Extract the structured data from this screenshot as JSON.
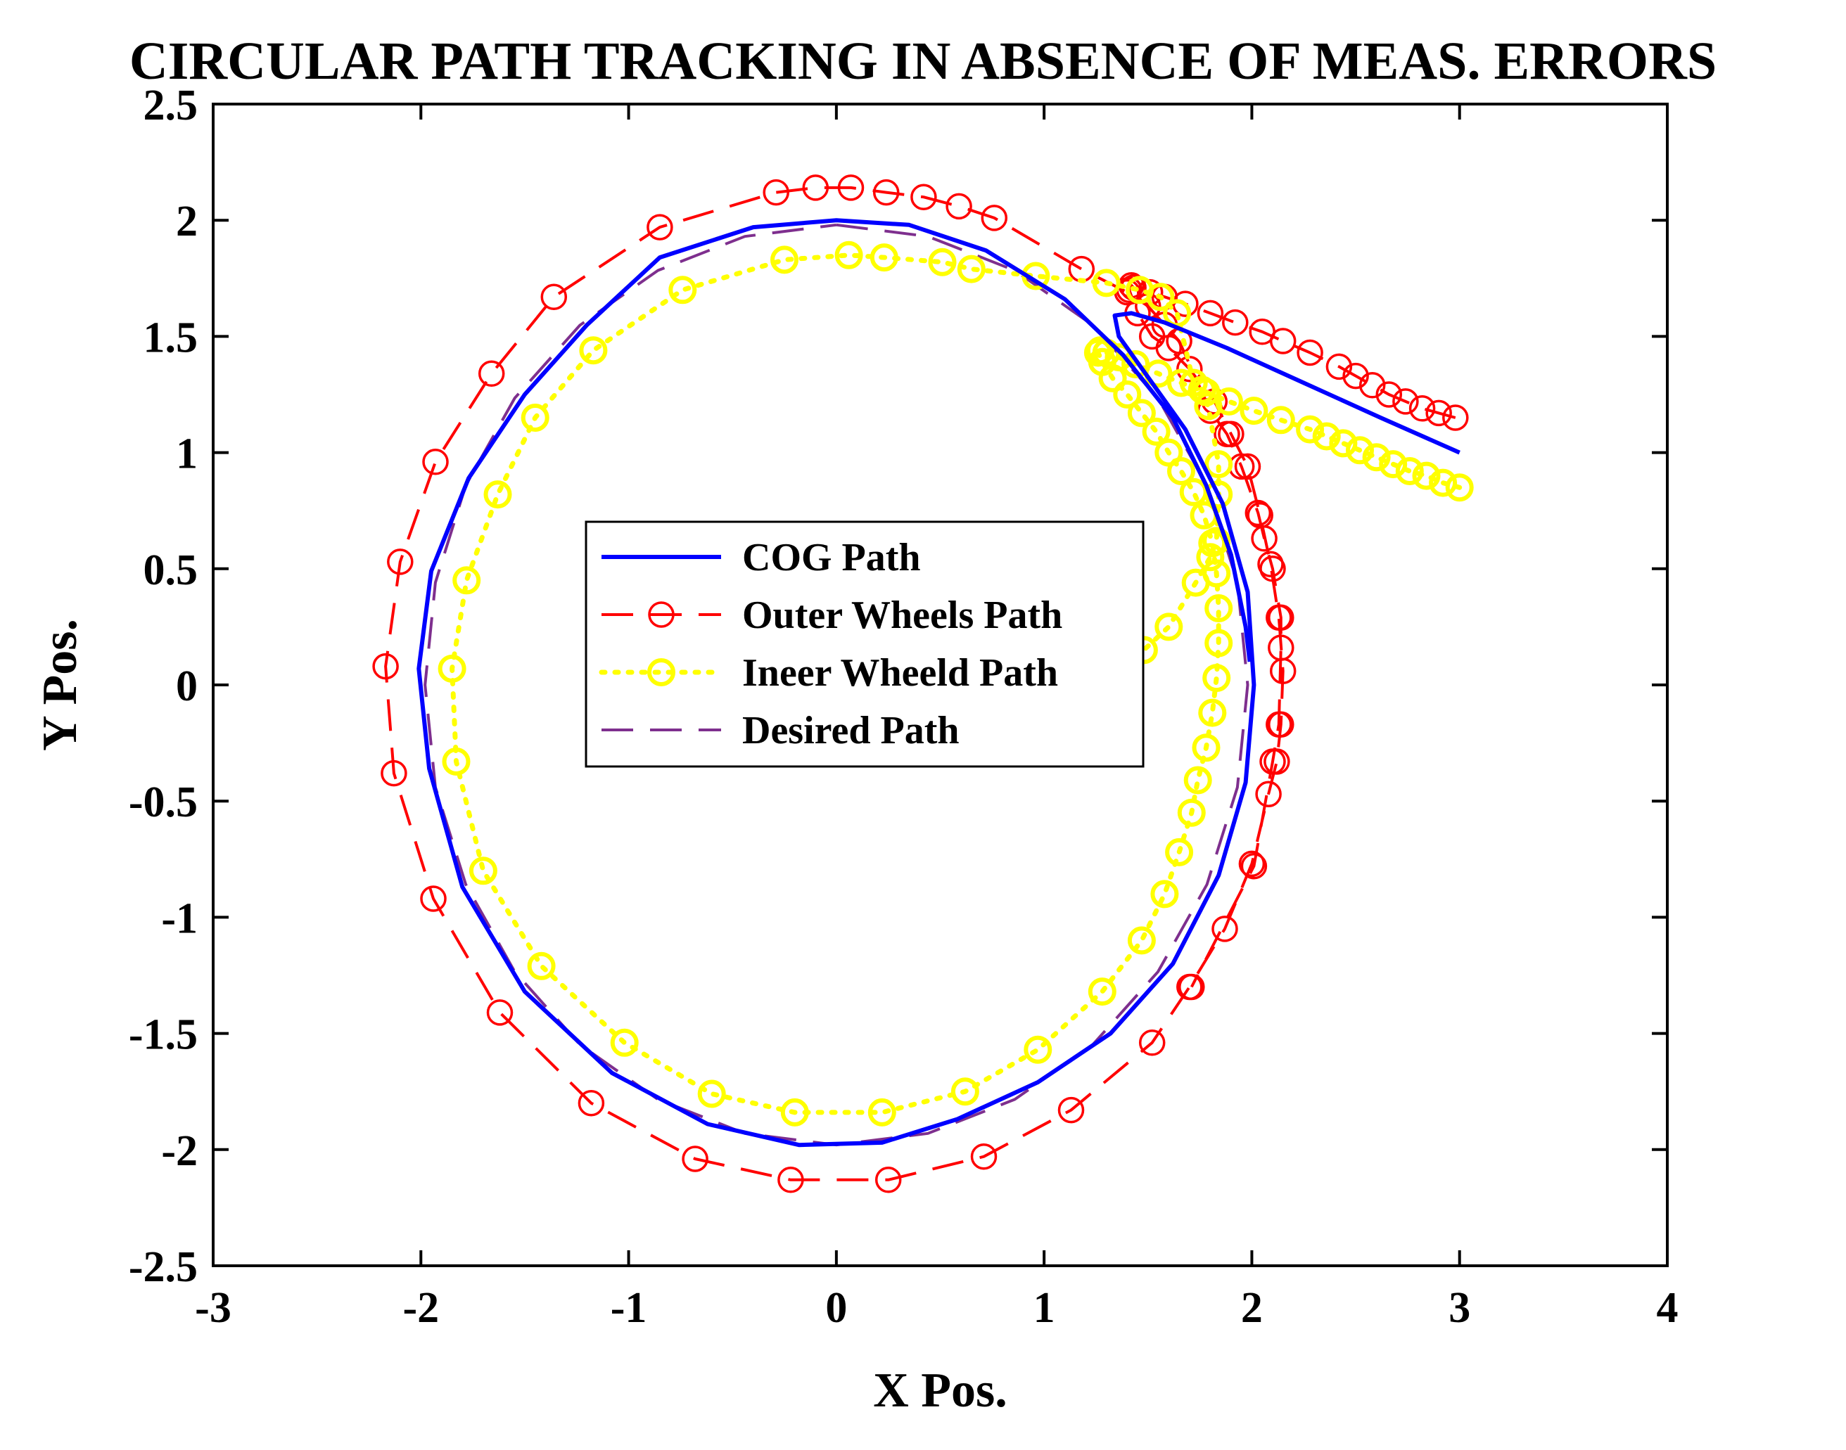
{
  "chart_data": {
    "type": "line",
    "title": "CIRCULAR PATH TRACKING IN ABSENCE OF MEAS. ERRORS",
    "xlabel": "X Pos.",
    "ylabel": "Y Pos.",
    "xlim": [
      -3,
      4
    ],
    "ylim": [
      -2.5,
      2.5
    ],
    "xticks": [
      -3,
      -2,
      -1,
      0,
      1,
      2,
      3,
      4
    ],
    "xtick_labels": [
      "-3",
      "-2",
      "-1",
      "0",
      "1",
      "2",
      "3",
      "4"
    ],
    "yticks": [
      -2.5,
      -2,
      -1.5,
      -1,
      -0.5,
      0,
      0.5,
      1,
      1.5,
      2,
      2.5
    ],
    "ytick_labels": [
      "-2.5",
      "-2",
      "-1.5",
      "-1",
      "-0.5",
      "0",
      "0.5",
      "1",
      "1.5",
      "2",
      "2.5"
    ],
    "grid": false,
    "legend_position": "center",
    "series": [
      {
        "name": "COG Path",
        "color": "#0000ff",
        "line_style": "solid",
        "marker": "none",
        "x": [
          3.0,
          2.62,
          2.25,
          1.88,
          1.58,
          1.42,
          1.34,
          1.36,
          1.48,
          1.68,
          1.86,
          1.98,
          2.01,
          1.97,
          1.84,
          1.62,
          1.32,
          0.97,
          0.58,
          0.22,
          -0.18,
          -0.62,
          -1.08,
          -1.5,
          -1.8,
          -1.96,
          -2.01,
          -1.95,
          -1.77,
          -1.5,
          -1.2,
          -0.85,
          -0.4,
          0.0,
          0.35,
          0.72,
          1.1,
          1.38,
          1.62,
          1.78,
          1.9,
          1.97,
          1.99
        ],
        "y": [
          1.0,
          1.15,
          1.3,
          1.45,
          1.56,
          1.6,
          1.59,
          1.5,
          1.35,
          1.1,
          0.78,
          0.4,
          0.0,
          -0.42,
          -0.82,
          -1.2,
          -1.5,
          -1.71,
          -1.87,
          -1.97,
          -1.98,
          -1.89,
          -1.67,
          -1.32,
          -0.87,
          -0.36,
          0.07,
          0.49,
          0.89,
          1.25,
          1.55,
          1.84,
          1.97,
          2.0,
          1.98,
          1.87,
          1.66,
          1.42,
          1.15,
          0.86,
          0.56,
          0.25,
          0.1
        ]
      },
      {
        "name": "Outer Wheels Path",
        "color": "#ff0000",
        "line_style": "dashed",
        "marker": "circle",
        "x": [
          2.98,
          2.9,
          2.82,
          2.74,
          2.66,
          2.58,
          2.5,
          2.42,
          2.28,
          2.15,
          2.05,
          1.92,
          1.8,
          1.68,
          1.58,
          1.51,
          1.46,
          1.43,
          1.42,
          1.41,
          1.45,
          1.52,
          1.6,
          1.7,
          1.82,
          1.9,
          1.98,
          2.04,
          2.09,
          2.13,
          2.15,
          2.14,
          2.12,
          2.08,
          2.0,
          1.87,
          1.7,
          1.52,
          1.13,
          0.71,
          0.25,
          -0.22,
          -0.68,
          -1.18,
          -1.62,
          -1.94,
          -2.13,
          -2.17,
          -2.1,
          -1.93,
          -1.66,
          -1.36,
          -0.85,
          -0.29,
          -0.1,
          0.07,
          0.24,
          0.42,
          0.59,
          0.76,
          1.18,
          1.4,
          1.5,
          1.58,
          1.65,
          1.8,
          1.88,
          1.95,
          2.03,
          2.06,
          2.1,
          2.14,
          2.14,
          2.13,
          2.1,
          2.01,
          1.71
        ],
        "y": [
          1.15,
          1.17,
          1.19,
          1.22,
          1.25,
          1.29,
          1.33,
          1.37,
          1.43,
          1.48,
          1.52,
          1.56,
          1.6,
          1.64,
          1.67,
          1.69,
          1.7,
          1.71,
          1.72,
          1.7,
          1.6,
          1.5,
          1.45,
          1.36,
          1.22,
          1.08,
          0.94,
          0.73,
          0.52,
          0.29,
          0.06,
          -0.17,
          -0.33,
          -0.47,
          -0.77,
          -1.05,
          -1.3,
          -1.54,
          -1.83,
          -2.03,
          -2.13,
          -2.13,
          -2.04,
          -1.8,
          -1.41,
          -0.92,
          -0.38,
          0.08,
          0.53,
          0.96,
          1.34,
          1.67,
          1.97,
          2.12,
          2.14,
          2.14,
          2.12,
          2.1,
          2.06,
          2.01,
          1.79,
          1.69,
          1.63,
          1.55,
          1.48,
          1.18,
          1.08,
          0.94,
          0.74,
          0.63,
          0.5,
          0.29,
          0.16,
          -0.17,
          -0.33,
          -0.78,
          -1.3
        ]
      },
      {
        "name": "Ineer Wheeld Path",
        "color": "#ffff00",
        "line_style": "dotted",
        "marker": "circle",
        "x": [
          3.0,
          2.92,
          2.84,
          2.76,
          2.68,
          2.6,
          2.52,
          2.44,
          2.36,
          2.28,
          2.14,
          2.01,
          1.89,
          1.78,
          1.66,
          1.55,
          1.44,
          1.36,
          1.3,
          1.27,
          1.26,
          1.28,
          1.33,
          1.4,
          1.47,
          1.54,
          1.6,
          1.66,
          1.72,
          1.77,
          1.81,
          1.83,
          1.84,
          1.84,
          1.83,
          1.81,
          1.78,
          1.74,
          1.71,
          1.65,
          1.58,
          1.47,
          1.28,
          0.97,
          0.62,
          0.22,
          -0.2,
          -0.6,
          -1.02,
          -1.42,
          -1.7,
          -1.83,
          -1.85,
          -1.78,
          -1.63,
          -1.45,
          -1.17,
          -0.74,
          -0.25,
          0.06,
          0.23,
          0.51,
          0.65,
          0.96,
          1.3,
          1.46,
          1.56,
          1.64,
          1.72,
          1.76,
          1.79,
          1.84,
          1.84,
          1.83,
          1.8,
          1.73,
          1.6,
          1.48
        ],
        "y": [
          0.85,
          0.87,
          0.9,
          0.92,
          0.95,
          0.98,
          1.01,
          1.04,
          1.07,
          1.1,
          1.14,
          1.18,
          1.22,
          1.26,
          1.3,
          1.34,
          1.38,
          1.41,
          1.43,
          1.44,
          1.43,
          1.39,
          1.32,
          1.25,
          1.17,
          1.09,
          1.0,
          0.92,
          0.83,
          0.73,
          0.61,
          0.48,
          0.33,
          0.18,
          0.03,
          -0.12,
          -0.27,
          -0.41,
          -0.55,
          -0.72,
          -0.9,
          -1.1,
          -1.32,
          -1.57,
          -1.75,
          -1.84,
          -1.84,
          -1.76,
          -1.54,
          -1.21,
          -0.8,
          -0.33,
          0.07,
          0.45,
          0.82,
          1.15,
          1.44,
          1.7,
          1.83,
          1.85,
          1.84,
          1.82,
          1.79,
          1.76,
          1.73,
          1.7,
          1.67,
          1.6,
          1.3,
          1.27,
          1.2,
          0.95,
          0.82,
          0.62,
          0.55,
          0.44,
          0.25,
          0.15
        ]
      },
      {
        "name": "Desired Path",
        "color": "#7e2f8e",
        "line_style": "dashed",
        "marker": "none",
        "shape": "circle",
        "center": [
          0,
          0
        ],
        "radius": 1.98
      }
    ]
  }
}
